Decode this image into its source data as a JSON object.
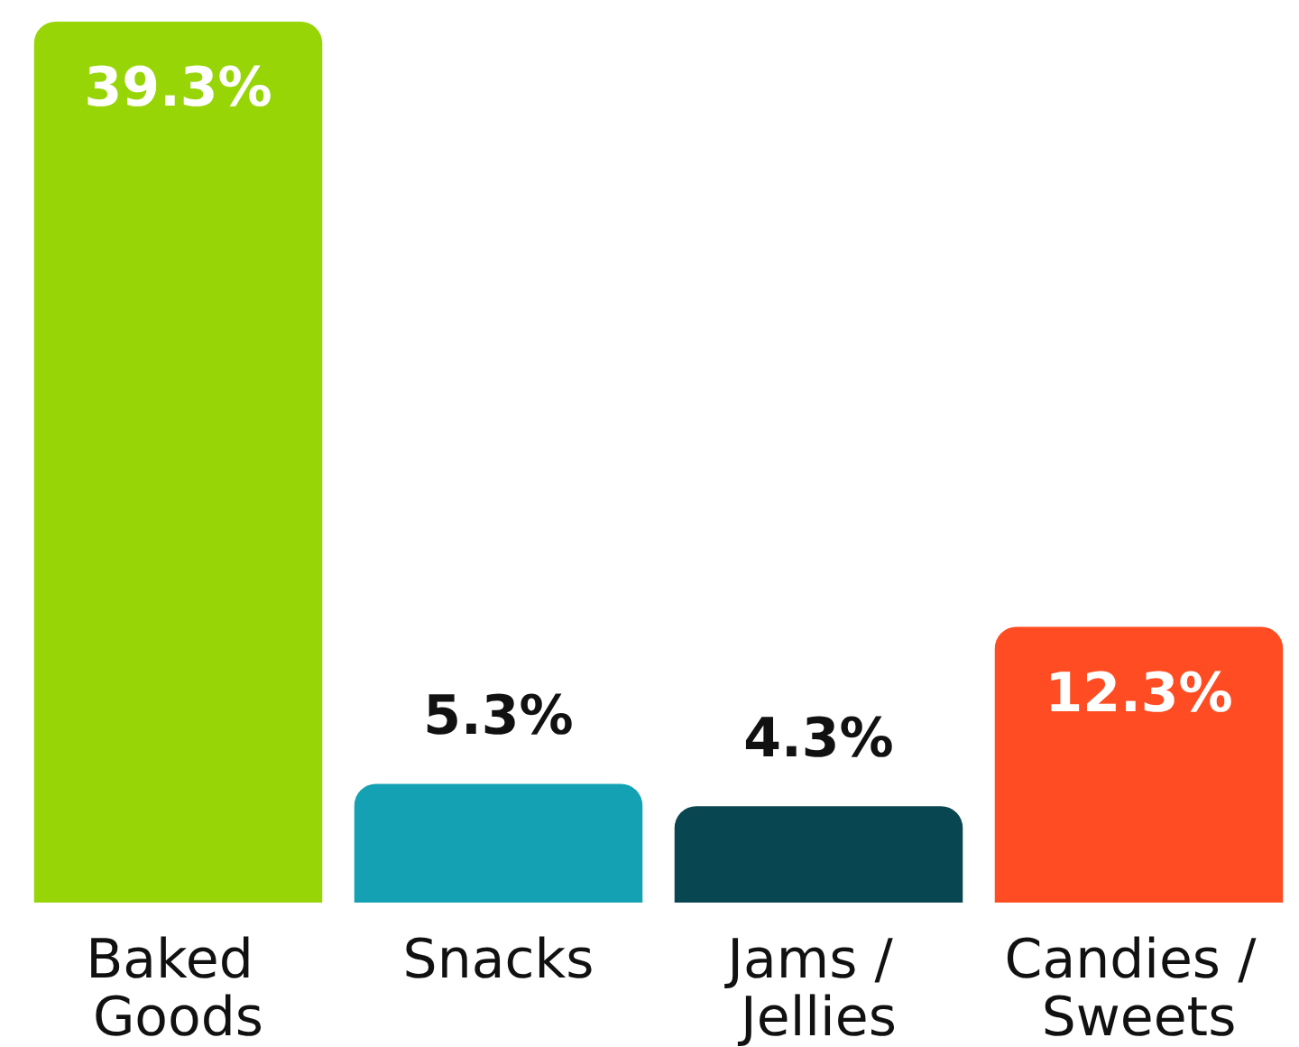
{
  "chart_data": {
    "type": "bar",
    "categories": [
      "Baked Goods",
      "Snacks",
      "Jams / Jellies",
      "Candies / Sweets"
    ],
    "values": [
      39.3,
      5.3,
      4.3,
      12.3
    ],
    "colors": [
      "#97d507",
      "#13a1b3",
      "#084652",
      "#ff4c22"
    ],
    "value_labels": [
      "39.3%",
      "5.3%",
      "4.3%",
      "12.3%"
    ]
  }
}
